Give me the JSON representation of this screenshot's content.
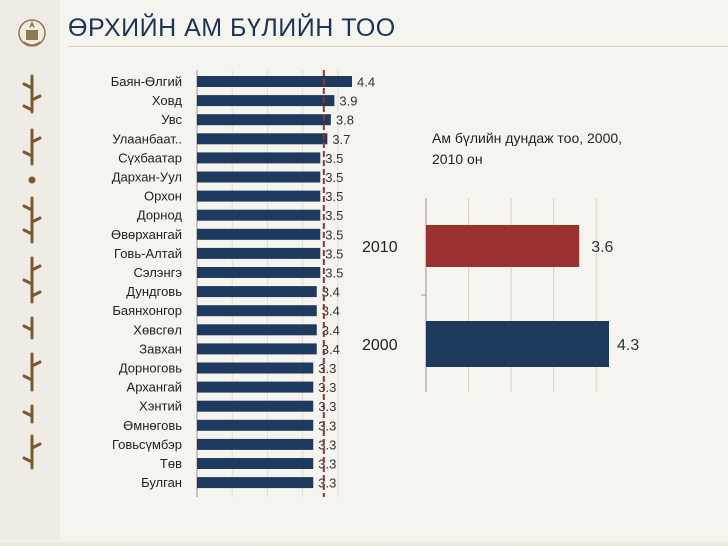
{
  "page": {
    "title": "ӨРХИЙН АМ БҮЛИЙН ТОО",
    "colors": {
      "navy": "#1e3a5f",
      "red": "#9b3131",
      "title": "#1c3458",
      "background": "#f6f4ef"
    }
  },
  "chart_data": [
    {
      "type": "bar",
      "orientation": "horizontal",
      "title": "",
      "categories": [
        "Баян-Өлгий",
        "Ховд",
        "Увс",
        "Улаанбаат..",
        "Сүхбаатар",
        "Дархан-Уул",
        "Орхон",
        "Дорнод",
        "Өвөрхангай",
        "Говь-Алтай",
        "Сэлэнгэ",
        "Дундговь",
        "Баянхонгор",
        "Хөвсгөл",
        "Завхан",
        "Дорноговь",
        "Архангай",
        "Хэнтий",
        "Өмнөговь",
        "Говьсүмбэр",
        "Төв",
        "Булган"
      ],
      "values": [
        4.4,
        3.9,
        3.8,
        3.7,
        3.5,
        3.5,
        3.5,
        3.5,
        3.5,
        3.5,
        3.5,
        3.4,
        3.4,
        3.4,
        3.4,
        3.3,
        3.3,
        3.3,
        3.3,
        3.3,
        3.3,
        3.3
      ],
      "value_labels": [
        "4.4",
        "3.9",
        "3.8",
        "3.7",
        "3.5",
        "3.5",
        "3.5",
        "3.5",
        "3.5",
        "3.5",
        "3.5",
        "3.4",
        "3.4",
        "3.4",
        "3.4",
        "3.3",
        "3.3",
        "3.3",
        "3.3",
        "3.3",
        "3.3",
        "3.3"
      ],
      "reference_line": 3.6,
      "bar_color": "#1e3a5f",
      "reference_color": "#9b3131",
      "xlim": [
        0,
        4.4
      ],
      "grid": true
    },
    {
      "type": "bar",
      "orientation": "horizontal",
      "title": "Ам бүлийн дундаж тоо, 2000, 2010 он",
      "categories": [
        "2010",
        "2000"
      ],
      "values": [
        3.6,
        4.3
      ],
      "value_labels": [
        "3.6",
        "4.3"
      ],
      "colors": [
        "#9b3131",
        "#1e3a5f"
      ],
      "xlim": [
        0,
        4.3
      ],
      "grid": true
    }
  ]
}
